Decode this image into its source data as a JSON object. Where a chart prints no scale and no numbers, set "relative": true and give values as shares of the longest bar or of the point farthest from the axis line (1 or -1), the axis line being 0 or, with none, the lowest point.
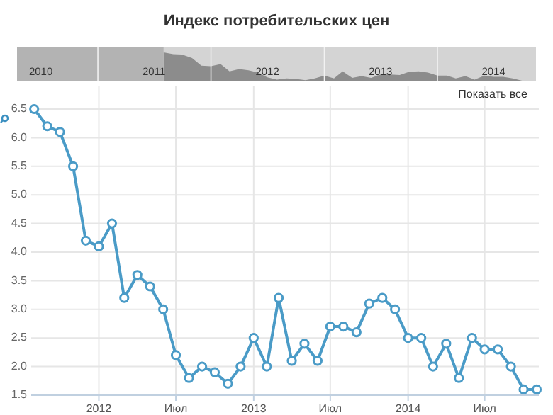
{
  "chart_data": [
    {
      "type": "line",
      "annotations": [
        "Показать все"
      ],
      "x": [
        "2011-08",
        "2011-09",
        "2011-10",
        "2011-11",
        "2011-12",
        "2012-01",
        "2012-02",
        "2012-03",
        "2012-04",
        "2012-05",
        "2012-06",
        "2012-07",
        "2012-08",
        "2012-09",
        "2012-10",
        "2012-11",
        "2012-12",
        "2013-01",
        "2013-02",
        "2013-03",
        "2013-04",
        "2013-05",
        "2013-06",
        "2013-07",
        "2013-08",
        "2013-09",
        "2013-10",
        "2013-11",
        "2013-12",
        "2014-01",
        "2014-02",
        "2014-03",
        "2014-04",
        "2014-05",
        "2014-06",
        "2014-07",
        "2014-08",
        "2014-09",
        "2014-10",
        "2014-11"
      ],
      "series": [
        {
          "color": "#4a9bc7",
          "values": [
            6.5,
            6.2,
            6.1,
            5.5,
            4.2,
            4.1,
            4.5,
            3.2,
            3.6,
            3.4,
            3.0,
            2.2,
            1.8,
            2.0,
            1.9,
            1.7,
            2.0,
            2.5,
            2.0,
            3.2,
            2.1,
            2.4,
            2.1,
            2.7,
            2.7,
            2.6,
            3.1,
            3.2,
            3.0,
            2.5,
            2.5,
            2.0,
            2.4,
            1.8,
            2.5,
            2.3,
            2.3,
            2.0,
            1.6,
            1.6
          ]
        }
      ],
      "xlim": [
        "2011-07-25",
        "2014-11-06"
      ],
      "xticks": [
        {
          "value": "2012-01",
          "label": "2012"
        },
        {
          "value": "2012-07",
          "label": "Июл"
        },
        {
          "value": "2013-01",
          "label": "2013"
        },
        {
          "value": "2013-07",
          "label": "Июл"
        },
        {
          "value": "2014-01",
          "label": "2014"
        },
        {
          "value": "2014-07",
          "label": "Июл"
        }
      ],
      "ylim": [
        1.5,
        6.5
      ],
      "yticks": [
        1.5,
        {
          "value": 2,
          "label": "2.0"
        },
        2.5,
        {
          "value": 3,
          "label": "3.0"
        },
        3.5,
        {
          "value": 4,
          "label": "4.0"
        },
        4.5,
        {
          "value": 5,
          "label": "5.0"
        },
        5.5,
        {
          "value": 6,
          "label": "6.0"
        },
        6.5
      ],
      "grid": true,
      "marker": "circle",
      "line_style": "solid"
    },
    {
      "type": "area",
      "title": "Индекс потребительских цен",
      "relative": true,
      "tick_labels": "x",
      "grid": "x",
      "x": [
        "2011-08",
        "2011-09",
        "2011-10",
        "2011-11",
        "2011-12",
        "2012-01",
        "2012-02",
        "2012-03",
        "2012-04",
        "2012-05",
        "2012-06",
        "2012-07",
        "2012-08",
        "2012-09",
        "2012-10",
        "2012-11",
        "2012-12",
        "2013-01",
        "2013-02",
        "2013-03",
        "2013-04",
        "2013-05",
        "2013-06",
        "2013-07",
        "2013-08",
        "2013-09",
        "2013-10",
        "2013-11",
        "2013-12",
        "2014-01",
        "2014-02",
        "2014-03",
        "2014-04",
        "2014-05",
        "2014-06",
        "2014-07",
        "2014-08",
        "2014-09",
        "2014-10",
        "2014-11"
      ],
      "series": [
        {
          "color": "#8c8c8c",
          "values": [
            1,
            0.94,
            0.92,
            0.8,
            0.53,
            0.51,
            0.59,
            0.33,
            0.41,
            0.37,
            0.29,
            0.12,
            0.04,
            0.08,
            0.06,
            0.02,
            0.08,
            0.18,
            0.08,
            0.33,
            0.1,
            0.16,
            0.1,
            0.22,
            0.22,
            0.2,
            0.31,
            0.33,
            0.29,
            0.18,
            0.18,
            0.08,
            0.16,
            0.04,
            0.18,
            0.14,
            0.14,
            0.08,
            0,
            0
          ]
        }
      ],
      "xlim": [
        "2010-04-15",
        "2014-11-15"
      ],
      "xticks": [
        {
          "value": "2010-07",
          "label": "2010"
        },
        {
          "value": "2011-01",
          "label": null
        },
        {
          "value": "2011-07",
          "label": "2011"
        },
        {
          "value": "2012-01",
          "label": null
        },
        {
          "value": "2012-07",
          "label": "2012"
        },
        {
          "value": "2013-01",
          "label": null
        },
        {
          "value": "2013-07",
          "label": "2013"
        },
        {
          "value": "2014-01",
          "label": null
        },
        {
          "value": "2014-07",
          "label": "2014"
        }
      ],
      "bands": [
        {
          "axis": "x",
          "from": "2010-04-15",
          "to": "2011-08",
          "color": "#b3b3b3"
        }
      ]
    }
  ]
}
